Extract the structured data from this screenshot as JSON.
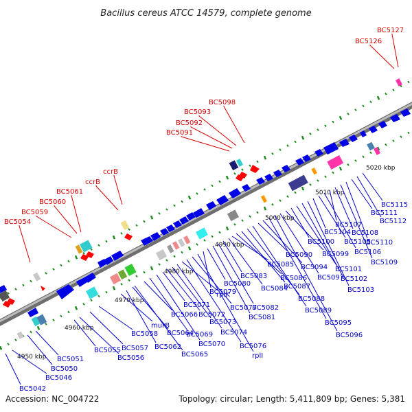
{
  "title": "Bacillus cereus ATCC 14579, complete genome",
  "footer": {
    "accession": "Accession: NC_004722",
    "topology": "Topology: circular; Length: 5,411,809 bp; Genes: 5,381"
  },
  "colors": {
    "backbone": "#9a9a9a",
    "forward_gene": "#0000e6",
    "reverse_gene": "#ff0000",
    "tick": "#1a8a1a",
    "label_red": "#d40000",
    "label_blue": "#0000c8"
  },
  "kbp_labels": [
    "4950 kbp",
    "4960 kbp",
    "4970 kbp",
    "4980 kbp",
    "4990 kbp",
    "5000 kbp",
    "5010 kbp",
    "5020 kbp"
  ],
  "red_labels": [
    "BC5054",
    "BC5059",
    "BC5060",
    "BC5061",
    "ccrB",
    "ccrB",
    "BC5091",
    "BC5092",
    "BC5093",
    "BC5098",
    "BC5126",
    "BC5127"
  ],
  "blue_labels": [
    "BC5042",
    "BC5046",
    "BC5050",
    "BC5051",
    "BC5055",
    "BC5056",
    "BC5057",
    "BC5058",
    "murB",
    "BC5062",
    "BC5064",
    "BC5065",
    "BC5066",
    "BC5069",
    "BC5070",
    "BC5071",
    "BC5072",
    "BC5073",
    "BC5074",
    "rplK",
    "BC5076",
    "BC5077",
    "rplI",
    "BC5079",
    "BC5080",
    "BC5081",
    "BC5082",
    "BC5083",
    "BC5084",
    "BC5085",
    "BC5086",
    "BC5087",
    "BC5088",
    "BC5089",
    "BC5090",
    "BC5094",
    "BC5095",
    "BC5096",
    "BC5097",
    "BC5099",
    "BC5100",
    "BC5101",
    "BC5102",
    "BC5103",
    "BC5104",
    "BC5105",
    "BC5106",
    "BC5107",
    "BC5108",
    "BC5109",
    "BC5110",
    "BC5111",
    "BC5112",
    "BC5115"
  ]
}
